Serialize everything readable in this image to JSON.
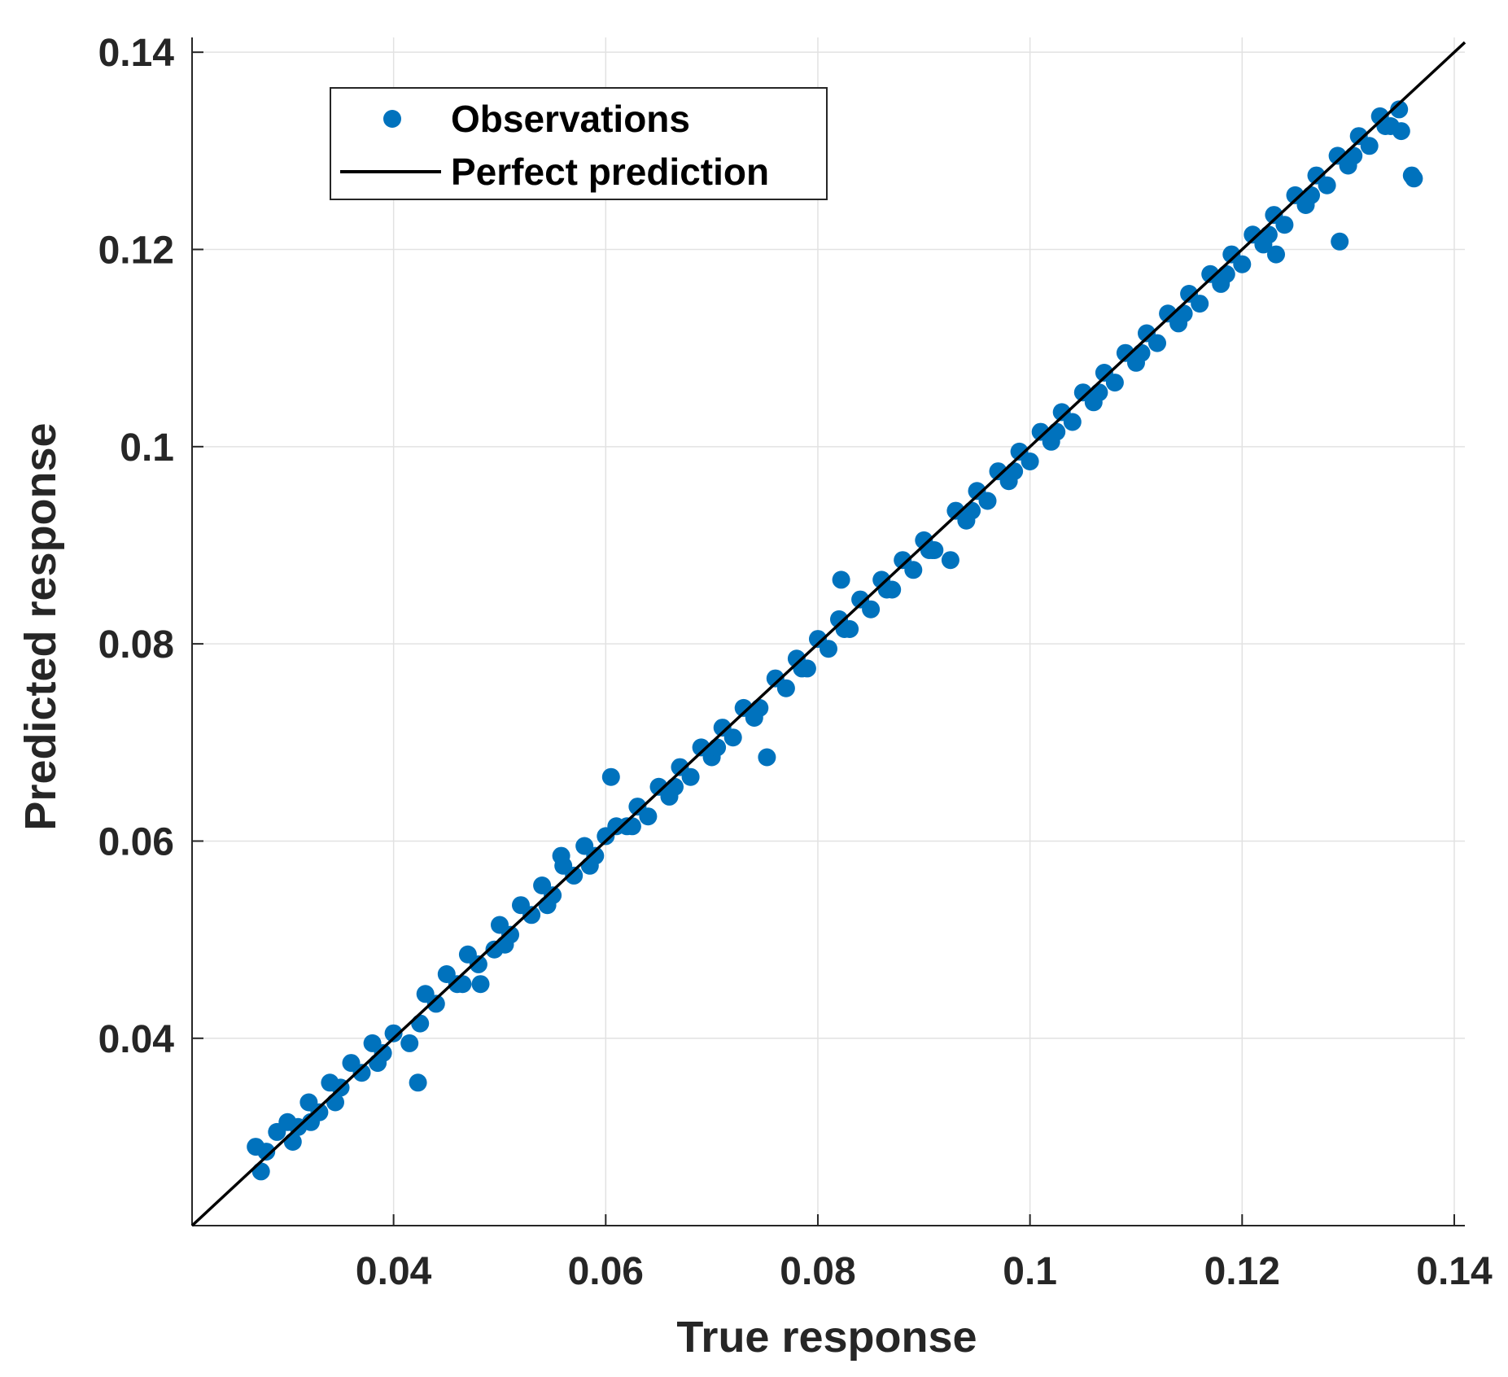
{
  "chart_data": {
    "type": "scatter",
    "title": "",
    "xlabel": "True response",
    "ylabel": "Predicted response",
    "xlim": [
      0.021,
      0.141
    ],
    "ylim": [
      0.021,
      0.1415
    ],
    "x_ticks": [
      0.04,
      0.06,
      0.08,
      0.1,
      0.12,
      0.14
    ],
    "x_tick_labels": [
      "0.04",
      "0.06",
      "0.08",
      "0.1",
      "0.12",
      "0.14"
    ],
    "y_ticks": [
      0.04,
      0.06,
      0.08,
      0.1,
      0.12,
      0.14
    ],
    "y_tick_labels": [
      "0.04",
      "0.06",
      "0.08",
      "0.1",
      "0.12",
      "0.14"
    ],
    "grid": true,
    "legend": {
      "location": "top-left",
      "entries": [
        {
          "label": "Observations",
          "marker": "dot",
          "color": "#0072BD"
        },
        {
          "label": "Perfect prediction",
          "marker": "line",
          "color": "#000000"
        }
      ]
    },
    "series": [
      {
        "name": "Observations",
        "kind": "points",
        "color": "#0072BD",
        "x": [
          0.027,
          0.028,
          0.029,
          0.03,
          0.031,
          0.032,
          0.033,
          0.034,
          0.035,
          0.036,
          0.037,
          0.038,
          0.039,
          0.04,
          0.0415,
          0.0423,
          0.043,
          0.044,
          0.045,
          0.046,
          0.047,
          0.048,
          0.0495,
          0.05,
          0.051,
          0.052,
          0.053,
          0.054,
          0.055,
          0.056,
          0.057,
          0.058,
          0.059,
          0.06,
          0.0605,
          0.061,
          0.062,
          0.063,
          0.064,
          0.065,
          0.066,
          0.067,
          0.068,
          0.069,
          0.07,
          0.071,
          0.072,
          0.073,
          0.074,
          0.0752,
          0.076,
          0.077,
          0.078,
          0.079,
          0.08,
          0.081,
          0.082,
          0.083,
          0.084,
          0.085,
          0.086,
          0.087,
          0.088,
          0.089,
          0.09,
          0.091,
          0.0925,
          0.093,
          0.094,
          0.095,
          0.096,
          0.097,
          0.098,
          0.099,
          0.1,
          0.101,
          0.102,
          0.103,
          0.104,
          0.105,
          0.106,
          0.107,
          0.108,
          0.109,
          0.11,
          0.111,
          0.112,
          0.113,
          0.114,
          0.115,
          0.116,
          0.117,
          0.118,
          0.119,
          0.12,
          0.121,
          0.122,
          0.123,
          0.124,
          0.125,
          0.126,
          0.127,
          0.128,
          0.129,
          0.13,
          0.131,
          0.132,
          0.133,
          0.134,
          0.135,
          0.136,
          0.0275,
          0.0305,
          0.0345,
          0.0385,
          0.0425,
          0.0465,
          0.0505,
          0.0545,
          0.0585,
          0.0625,
          0.0665,
          0.0705,
          0.0745,
          0.0785,
          0.0825,
          0.0865,
          0.0905,
          0.0945,
          0.0985,
          0.1025,
          0.1065,
          0.1105,
          0.1145,
          0.1185,
          0.1225,
          0.1265,
          0.1305,
          0.1335,
          0.0822,
          0.0908,
          0.0558,
          0.0482,
          0.0322,
          0.1232,
          0.1292,
          0.1348,
          0.1362
        ],
        "y": [
          0.029,
          0.0285,
          0.0305,
          0.0315,
          0.031,
          0.0335,
          0.0325,
          0.0355,
          0.035,
          0.0375,
          0.0365,
          0.0395,
          0.0385,
          0.0405,
          0.0395,
          0.0355,
          0.0445,
          0.0435,
          0.0465,
          0.0455,
          0.0485,
          0.0475,
          0.049,
          0.0515,
          0.0505,
          0.0535,
          0.0525,
          0.0555,
          0.0545,
          0.0575,
          0.0565,
          0.0595,
          0.0585,
          0.0605,
          0.0665,
          0.0615,
          0.0615,
          0.0635,
          0.0625,
          0.0655,
          0.0645,
          0.0675,
          0.0665,
          0.0695,
          0.0685,
          0.0715,
          0.0705,
          0.0735,
          0.0725,
          0.0685,
          0.0765,
          0.0755,
          0.0785,
          0.0775,
          0.0805,
          0.0795,
          0.0825,
          0.0815,
          0.0845,
          0.0835,
          0.0865,
          0.0855,
          0.0885,
          0.0875,
          0.0905,
          0.0895,
          0.0885,
          0.0935,
          0.0925,
          0.0955,
          0.0945,
          0.0975,
          0.0965,
          0.0995,
          0.0985,
          0.1015,
          0.1005,
          0.1035,
          0.1025,
          0.1055,
          0.1045,
          0.1075,
          0.1065,
          0.1095,
          0.1085,
          0.1115,
          0.1105,
          0.1135,
          0.1125,
          0.1155,
          0.1145,
          0.1175,
          0.1165,
          0.1195,
          0.1185,
          0.1215,
          0.1205,
          0.1235,
          0.1225,
          0.1255,
          0.1245,
          0.1275,
          0.1265,
          0.1295,
          0.1285,
          0.1315,
          0.1305,
          0.1335,
          0.1325,
          0.132,
          0.1275,
          0.0265,
          0.0295,
          0.0335,
          0.0375,
          0.0415,
          0.0455,
          0.0495,
          0.0535,
          0.0575,
          0.0615,
          0.0655,
          0.0695,
          0.0735,
          0.0775,
          0.0815,
          0.0855,
          0.0895,
          0.0935,
          0.0975,
          0.1015,
          0.1055,
          0.1095,
          0.1135,
          0.1175,
          0.1215,
          0.1255,
          0.1295,
          0.1325,
          0.0865,
          0.0895,
          0.0585,
          0.0455,
          0.0315,
          0.1195,
          0.1208,
          0.1342,
          0.1272
        ]
      },
      {
        "name": "Perfect prediction",
        "kind": "line",
        "color": "#000000",
        "x": [
          0.021,
          0.141
        ],
        "y": [
          0.021,
          0.141
        ]
      }
    ]
  }
}
